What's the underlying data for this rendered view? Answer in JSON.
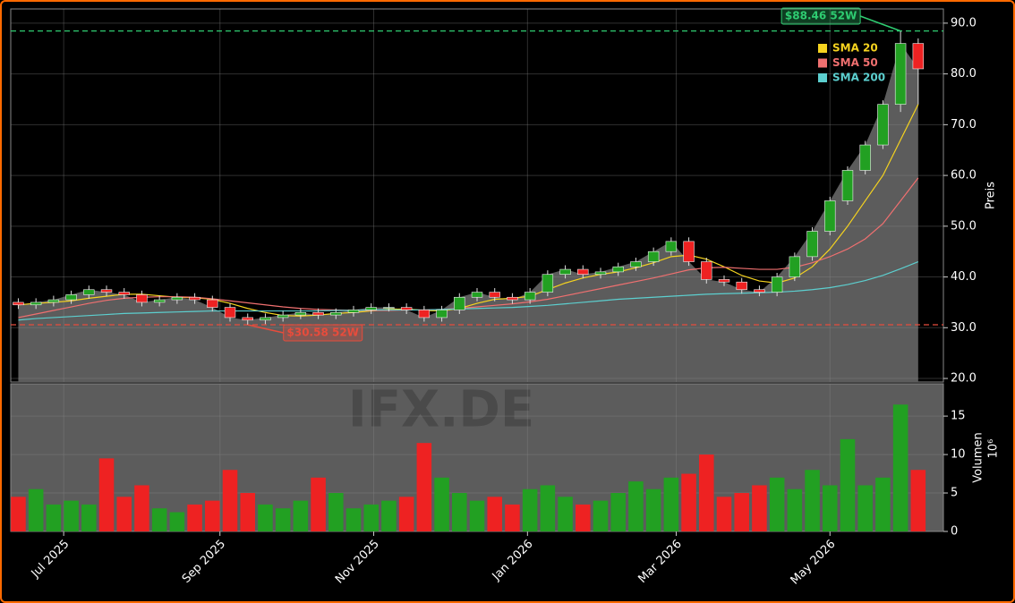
{
  "chart_data": [
    {
      "type": "candlestick",
      "x": [
        -18,
        -11,
        -4,
        3,
        10,
        17,
        24,
        31,
        38,
        45,
        52,
        59,
        66,
        73,
        80,
        87,
        94,
        101,
        108,
        115,
        122,
        129,
        136,
        143,
        150,
        157,
        164,
        171,
        178,
        185,
        192,
        199,
        206,
        213,
        220,
        227,
        234,
        241,
        248,
        255,
        262,
        269,
        276,
        283,
        290,
        297,
        304,
        311,
        318,
        325,
        332,
        339
      ],
      "open": [
        35,
        34.5,
        35,
        35.5,
        36.5,
        37.5,
        37,
        36.5,
        35,
        35.5,
        36,
        35.5,
        34,
        32,
        31.5,
        32,
        32.5,
        33,
        32.5,
        33,
        33.5,
        34,
        34,
        33.5,
        32,
        33.5,
        36,
        37,
        36,
        35.5,
        37,
        40.5,
        41.5,
        40.5,
        41,
        42,
        43,
        45,
        47,
        43,
        39.5,
        39,
        37.5,
        37,
        40,
        44,
        49,
        55,
        61,
        66,
        74,
        86
      ],
      "high": [
        35.8,
        35.8,
        36.3,
        37.3,
        38.3,
        38.3,
        37.8,
        37.3,
        36.3,
        36.8,
        36.8,
        36.3,
        34.8,
        32.8,
        32.8,
        33.3,
        33.8,
        33.8,
        33.8,
        34.3,
        34.8,
        34.8,
        34.8,
        34.3,
        34.3,
        36.8,
        37.8,
        37.8,
        36.8,
        37.8,
        41.3,
        42.3,
        42.3,
        41.8,
        42.8,
        43.8,
        45.8,
        47.8,
        47.8,
        43.8,
        40.3,
        39.8,
        38.3,
        40.8,
        44.8,
        49.8,
        55.8,
        61.8,
        66.8,
        74.8,
        88.46,
        87
      ],
      "low": [
        33.7,
        33.7,
        34.2,
        34.7,
        35.7,
        36.2,
        35.7,
        34.2,
        34.2,
        34.7,
        34.7,
        33.2,
        31.2,
        30.58,
        30.7,
        31.2,
        31.7,
        31.7,
        31.7,
        32.2,
        32.7,
        33.2,
        32.7,
        31.2,
        31.2,
        32.7,
        35.2,
        35.2,
        34.7,
        34.7,
        36.2,
        39.7,
        39.7,
        39.7,
        40.2,
        41.2,
        42.2,
        44.2,
        42.2,
        38.7,
        38.2,
        36.7,
        36.2,
        36.2,
        39.2,
        43.2,
        48.2,
        54.2,
        60.2,
        65.2,
        72.5,
        74
      ],
      "close": [
        34.5,
        35,
        35.5,
        36.5,
        37.5,
        37,
        36.5,
        35,
        35.5,
        36,
        35.5,
        34,
        32,
        31.5,
        32,
        32.5,
        33,
        32.5,
        33,
        33.5,
        34,
        34,
        33.5,
        32,
        33.5,
        36,
        37,
        36,
        35.5,
        37,
        40.5,
        41.5,
        40.5,
        41,
        42,
        43,
        45,
        47,
        43,
        39.5,
        39,
        37.5,
        37,
        40,
        44,
        49,
        55,
        61,
        66,
        74,
        86,
        81
      ],
      "up_color": "#22a022",
      "down_color": "#ee2222",
      "area_color": "#5c5c5c",
      "xlim": [
        -21,
        349
      ],
      "ylim": [
        19.3,
        92.8
      ],
      "yticks": [
        {
          "value": 20,
          "label": "20.0"
        },
        {
          "value": 30,
          "label": "30.0"
        },
        {
          "value": 40,
          "label": "40.0"
        },
        {
          "value": 50,
          "label": "50.0"
        },
        {
          "value": 60,
          "label": "60.0"
        },
        {
          "value": 70,
          "label": "70.0"
        },
        {
          "value": 80,
          "label": "80.0"
        },
        {
          "value": 90,
          "label": "90.0"
        }
      ],
      "ylabel": "Preis",
      "grid": true,
      "overlays": [
        {
          "name": "SMA 20",
          "color": "#f5d31f",
          "values": [
            34.5,
            34.8,
            35,
            35.3,
            35.8,
            36.2,
            36.6,
            36.6,
            36.3,
            36,
            35.9,
            35.6,
            34.8,
            33.8,
            33,
            32.4,
            32.3,
            32.5,
            32.8,
            33,
            33.3,
            33.6,
            33.7,
            33.4,
            33.3,
            33.8,
            34.8,
            35.6,
            35.8,
            36.2,
            37.5,
            38.8,
            39.8,
            40.5,
            41,
            41.8,
            42.8,
            44,
            44.3,
            43.5,
            42,
            40.3,
            39.2,
            38.8,
            39.8,
            42,
            45.5,
            50,
            55,
            60,
            67,
            74
          ]
        },
        {
          "name": "SMA 50",
          "color": "#f07070",
          "values": [
            32,
            32.7,
            33.4,
            34.1,
            34.8,
            35.4,
            35.8,
            36,
            36.1,
            36.1,
            36,
            35.7,
            35.3,
            34.9,
            34.5,
            34.1,
            33.8,
            33.6,
            33.5,
            33.4,
            33.4,
            33.4,
            33.5,
            33.5,
            33.6,
            33.8,
            34.1,
            34.4,
            34.7,
            35.1,
            35.6,
            36.3,
            37,
            37.7,
            38.4,
            39.1,
            39.8,
            40.6,
            41.4,
            41.8,
            41.9,
            41.7,
            41.5,
            41.5,
            41.9,
            42.8,
            44,
            45.5,
            47.5,
            50.5,
            55,
            59.5
          ]
        },
        {
          "name": "SMA 200",
          "color": "#5ccfcf",
          "values": [
            31.5,
            31.8,
            32,
            32.2,
            32.4,
            32.6,
            32.8,
            32.9,
            33,
            33.1,
            33.2,
            33.3,
            33.3,
            33.3,
            33.3,
            33.3,
            33.3,
            33.3,
            33.4,
            33.4,
            33.5,
            33.5,
            33.5,
            33.5,
            33.6,
            33.7,
            33.8,
            33.9,
            34,
            34.2,
            34.4,
            34.7,
            35,
            35.3,
            35.6,
            35.8,
            36,
            36.2,
            36.4,
            36.6,
            36.7,
            36.8,
            36.9,
            37,
            37.2,
            37.5,
            37.9,
            38.5,
            39.3,
            40.3,
            41.6,
            43
          ]
        }
      ],
      "high_mark": {
        "value": 88.46,
        "label": "$88.46 52W",
        "color": "#2ecc71"
      },
      "low_mark": {
        "value": 30.58,
        "label": "$30.58 52W",
        "color": "#e74c3c"
      }
    },
    {
      "type": "bar",
      "values": [
        4.5,
        5.5,
        3.5,
        4,
        3.5,
        9.5,
        4.5,
        6,
        3,
        2.5,
        3.5,
        4,
        8,
        5,
        3.5,
        3,
        4,
        7,
        5,
        3,
        3.5,
        4,
        4.5,
        11.5,
        7,
        5,
        4,
        4.5,
        3.5,
        5.5,
        6,
        4.5,
        3.5,
        4,
        5,
        6.5,
        5.5,
        7,
        7.5,
        10,
        4.5,
        5,
        6,
        7,
        5.5,
        8,
        6,
        12,
        6,
        7,
        16.5,
        8
      ],
      "ylim": [
        0,
        19.2
      ],
      "yticks": [
        0,
        5,
        10,
        15
      ],
      "ylabel": "Volumen",
      "scale_label": "10⁶",
      "watermark": "IFX.DE",
      "xticks": [
        {
          "value": 0,
          "label": "Jul 2025"
        },
        {
          "value": 62,
          "label": "Sep 2025"
        },
        {
          "value": 123,
          "label": "Nov 2025"
        },
        {
          "value": 184,
          "label": "Jan 2026"
        },
        {
          "value": 243,
          "label": "Mar 2026"
        },
        {
          "value": 304,
          "label": "May 2026"
        }
      ]
    }
  ]
}
